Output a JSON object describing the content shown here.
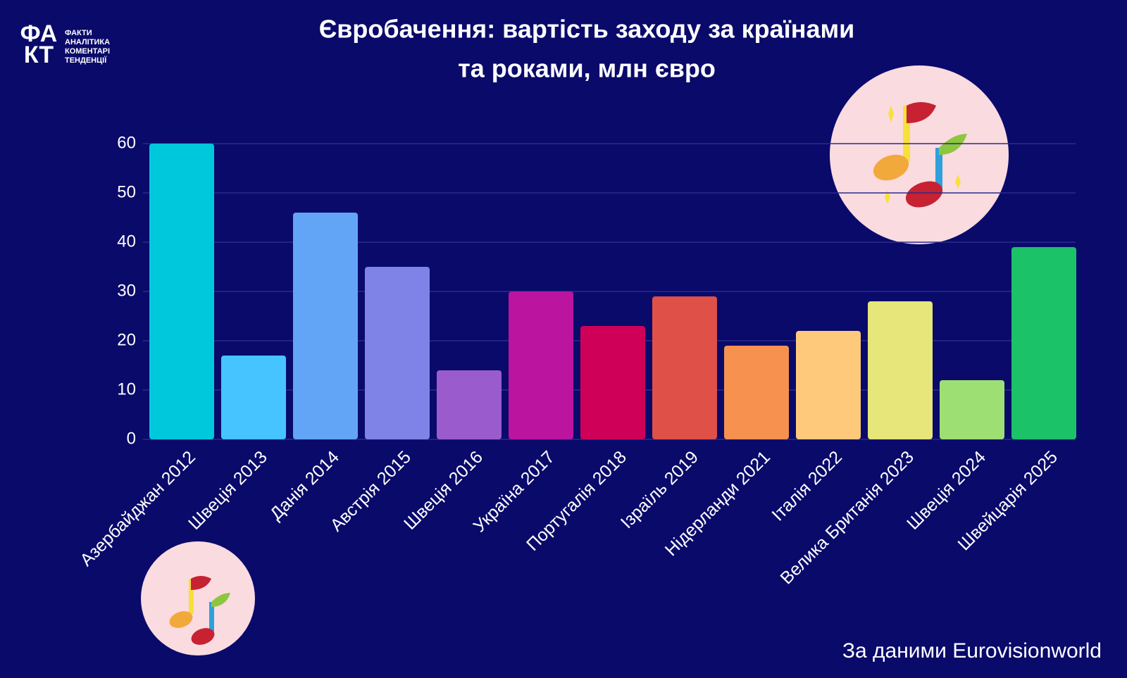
{
  "logo": {
    "mark": [
      "ФА",
      "КТ"
    ],
    "lines": [
      "ФАКТИ",
      "АНАЛІТИКА",
      "КОМЕНТАРІ",
      "ТЕНДЕНЦІЇ"
    ]
  },
  "chart_data": {
    "type": "bar",
    "title": [
      "Євробачення: вартість заходу за країнами",
      "та роками, млн євро"
    ],
    "categories": [
      "Азербайджан 2012",
      "Швеція 2013",
      "Данія 2014",
      "Австрія 2015",
      "Швеція 2016",
      "Україна 2017",
      "Португалія 2018",
      "Ізраїль 2019",
      "Нідерланди 2021",
      "Італія 2022",
      "Велика Британія 2023",
      "Швеція 2024",
      "Швейцарія 2025"
    ],
    "values": [
      60,
      17,
      46,
      35,
      14,
      30,
      23,
      29,
      19,
      22,
      28,
      12,
      39
    ],
    "colors": [
      "#00c8dc",
      "#45c4ff",
      "#62a5f7",
      "#7f83e8",
      "#9a5ccc",
      "#bb149f",
      "#cf0058",
      "#de5048",
      "#f6914f",
      "#fec97a",
      "#e6e67a",
      "#9ddf72",
      "#1bc267"
    ],
    "ylim": [
      0,
      60
    ],
    "yticks": [
      0,
      10,
      20,
      30,
      40,
      50,
      60
    ],
    "grid": true,
    "source": "За даними  Eurovisionworld"
  }
}
